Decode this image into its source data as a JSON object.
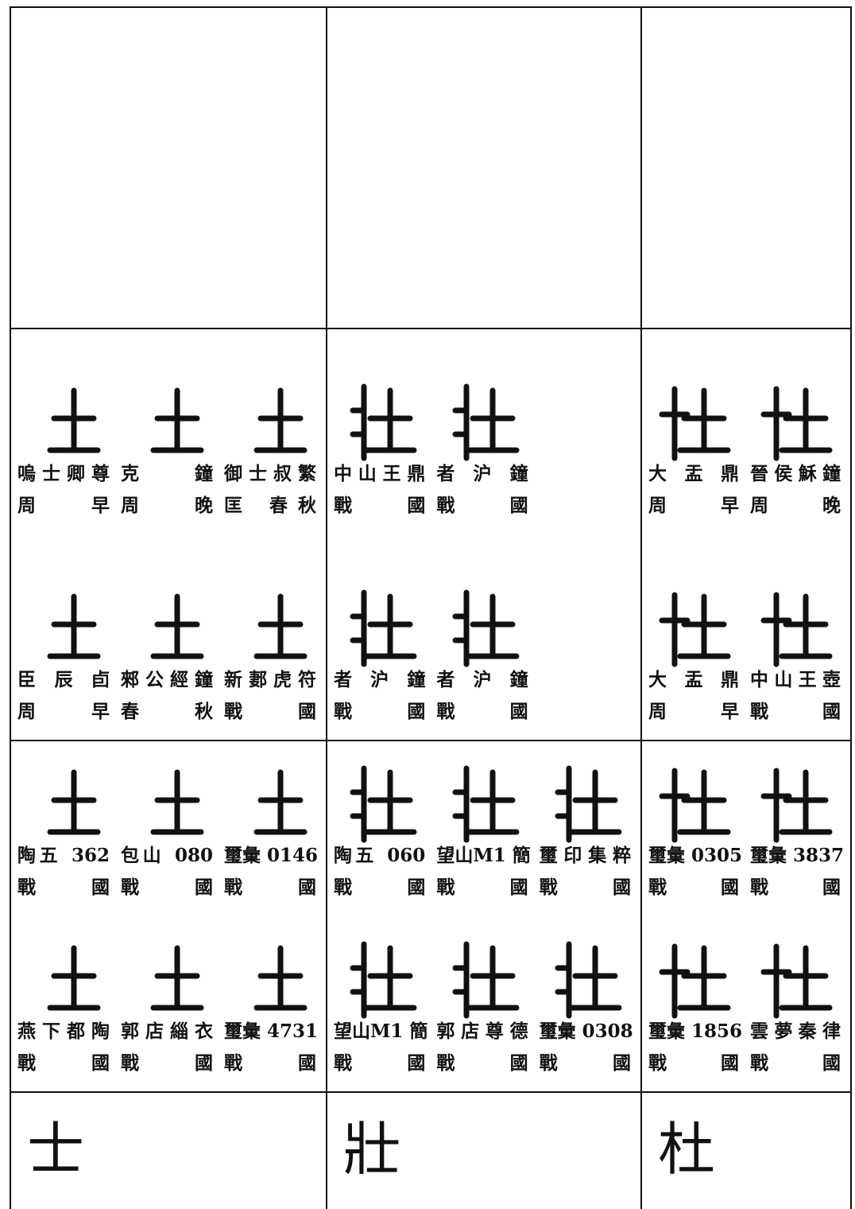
{
  "sections": [
    {
      "cells": [
        {
          "entries": [
            {
              "source": "嗚士卿尊",
              "period": "周 早"
            },
            {
              "source": "克 鐘",
              "period": "周 晚"
            },
            {
              "source": "御士叔繁",
              "period": "匡 春秋"
            },
            {
              "source": "臣辰卣",
              "period": "周 早"
            },
            {
              "source": "郲公經鐘",
              "period": "春 秋"
            },
            {
              "source": "新郪虎符",
              "period": "戰 國"
            }
          ]
        },
        {
          "entries": [
            {
              "source": "中山王鼎",
              "period": "戰 國"
            },
            {
              "source": "者沪鐘",
              "period": "戰 國"
            },
            null,
            {
              "source": "者沪鐘",
              "period": "戰 國"
            },
            {
              "source": "者沪鐘",
              "period": "戰 國"
            }
          ]
        },
        {
          "entries": [
            {
              "source": "大盂鼎",
              "period": "周 早"
            },
            {
              "source": "晉侯穌鐘",
              "period": "周 晚"
            },
            {
              "source": "大盂鼎",
              "period": "周 早"
            },
            {
              "source": "中山王壺",
              "period": "戰 國"
            }
          ]
        }
      ]
    },
    {
      "cells": [
        {
          "entries": [
            {
              "source": "陶五 362",
              "period": "戰 國"
            },
            {
              "source": "包山 080",
              "period": "戰 國"
            },
            {
              "source": "璽彙 0146",
              "period": "戰 國"
            },
            {
              "source": "燕下都陶",
              "period": "戰 國"
            },
            {
              "source": "郭店緇衣",
              "period": "戰 國"
            },
            {
              "source": "璽彙 4731",
              "period": "戰 國"
            }
          ]
        },
        {
          "entries": [
            {
              "source": "陶五 060",
              "period": "戰 國"
            },
            {
              "source": "望山M1 簡",
              "period": "戰 國"
            },
            {
              "source": "璽印集粹",
              "period": "戰 國"
            },
            {
              "source": "望山M1 簡",
              "period": "戰 國"
            },
            {
              "source": "郭店尊德",
              "period": "戰 國"
            },
            {
              "source": "璽彙 0308",
              "period": "戰 國"
            }
          ]
        },
        {
          "entries": [
            {
              "source": "璽彙 0305",
              "period": "戰 國"
            },
            {
              "source": "璽彙 3837",
              "period": "戰 國"
            },
            {
              "source": "璽彙 1856",
              "period": "戰 國"
            },
            {
              "source": "雲夢秦律",
              "period": "戰 國"
            }
          ]
        }
      ]
    }
  ],
  "modern_forms": [
    "士",
    "壯",
    "杜"
  ]
}
